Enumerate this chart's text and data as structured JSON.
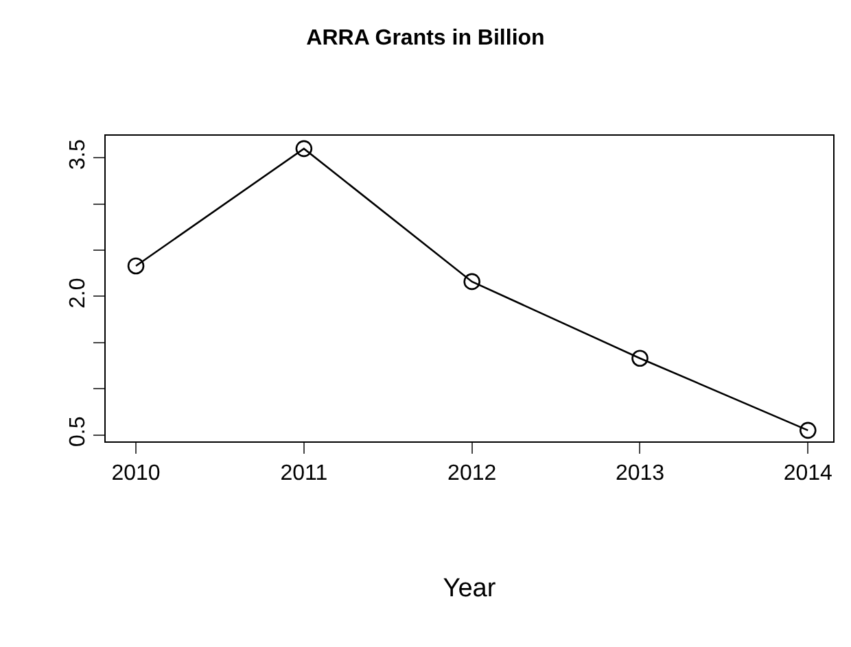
{
  "chart_data": {
    "type": "line",
    "title": "ARRA Grants in Billion",
    "xlabel": "Year",
    "x": [
      2010,
      2011,
      2012,
      2013,
      2014
    ],
    "series": [
      {
        "color": "#000000",
        "values": [
          2.33,
          3.6,
          2.16,
          1.33,
          0.55
        ]
      }
    ],
    "xlim": [
      2009.82,
      2014.15
    ],
    "xticks": [
      2010,
      2011,
      2012,
      2013,
      2014
    ],
    "ylim": [
      0.43,
      3.74
    ],
    "yticks": [
      0.5,
      {
        "value": 1.0,
        "label": null
      },
      {
        "value": 1.5,
        "label": null
      },
      {
        "value": 2.0,
        "label": "2.0"
      },
      {
        "value": 2.5,
        "label": null
      },
      {
        "value": 3.0,
        "label": null
      },
      3.5
    ],
    "marker": "circle",
    "line_style": "solid",
    "legend": false
  }
}
